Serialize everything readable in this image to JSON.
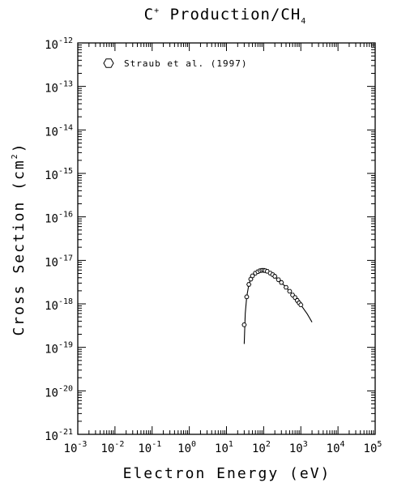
{
  "chart_data": {
    "type": "scatter",
    "title": {
      "base": "C",
      "sup": "+",
      "middle": " Production/CH",
      "sub": "4"
    },
    "xlabel": "Electron Energy (eV)",
    "ylabel": {
      "main": "Cross Section (cm",
      "sup": "2",
      "end": ")"
    },
    "x_scale": "log",
    "y_scale": "log",
    "xlim": [
      0.001,
      100000
    ],
    "ylim": [
      1e-21,
      1e-12
    ],
    "x_ticks": [
      {
        "base": "10",
        "exp": "-3"
      },
      {
        "base": "10",
        "exp": "-2"
      },
      {
        "base": "10",
        "exp": "-1"
      },
      {
        "base": "10",
        "exp": "0"
      },
      {
        "base": "10",
        "exp": "1"
      },
      {
        "base": "10",
        "exp": "2"
      },
      {
        "base": "10",
        "exp": "3"
      },
      {
        "base": "10",
        "exp": "4"
      },
      {
        "base": "10",
        "exp": "5"
      }
    ],
    "y_ticks": [
      {
        "base": "10",
        "exp": "-12"
      },
      {
        "base": "10",
        "exp": "-13"
      },
      {
        "base": "10",
        "exp": "-14"
      },
      {
        "base": "10",
        "exp": "-15"
      },
      {
        "base": "10",
        "exp": "-16"
      },
      {
        "base": "10",
        "exp": "-17"
      },
      {
        "base": "10",
        "exp": "-18"
      },
      {
        "base": "10",
        "exp": "-19"
      },
      {
        "base": "10",
        "exp": "-20"
      },
      {
        "base": "10",
        "exp": "-21"
      }
    ],
    "legend": {
      "position": "top-left",
      "entry": "Straub et al. (1997)",
      "marker": "hexagon"
    },
    "grid": false,
    "series": [
      {
        "name": "Straub et al. (1997)",
        "kind": "points",
        "x": [
          30,
          35,
          40,
          45,
          50,
          60,
          70,
          80,
          90,
          100,
          110,
          125,
          150,
          175,
          200,
          250,
          300,
          400,
          500,
          600,
          700,
          800,
          900,
          1000
        ],
        "y": [
          3.3e-19,
          1.45e-18,
          2.8e-18,
          3.7e-18,
          4.4e-18,
          5.1e-18,
          5.5e-18,
          5.8e-18,
          5.9e-18,
          5.9e-18,
          5.8e-18,
          5.6e-18,
          5.1e-18,
          4.7e-18,
          4.3e-18,
          3.6e-18,
          3.1e-18,
          2.4e-18,
          1.95e-18,
          1.6e-18,
          1.4e-18,
          1.2e-18,
          1.05e-18,
          9.5e-19
        ]
      },
      {
        "kind": "line",
        "x": [
          30,
          32,
          35,
          40,
          45,
          50,
          60,
          70,
          80,
          90,
          100,
          125,
          150,
          200,
          300,
          400,
          500,
          700,
          1000,
          1500,
          2000
        ],
        "y": [
          1.2e-19,
          6e-19,
          1.45e-18,
          2.8e-18,
          3.7e-18,
          4.4e-18,
          5.1e-18,
          5.5e-18,
          5.8e-18,
          5.9e-18,
          5.9e-18,
          5.6e-18,
          5.1e-18,
          4.3e-18,
          3.1e-18,
          2.4e-18,
          1.95e-18,
          1.4e-18,
          9.5e-19,
          5.8e-19,
          3.8e-19
        ]
      }
    ]
  }
}
